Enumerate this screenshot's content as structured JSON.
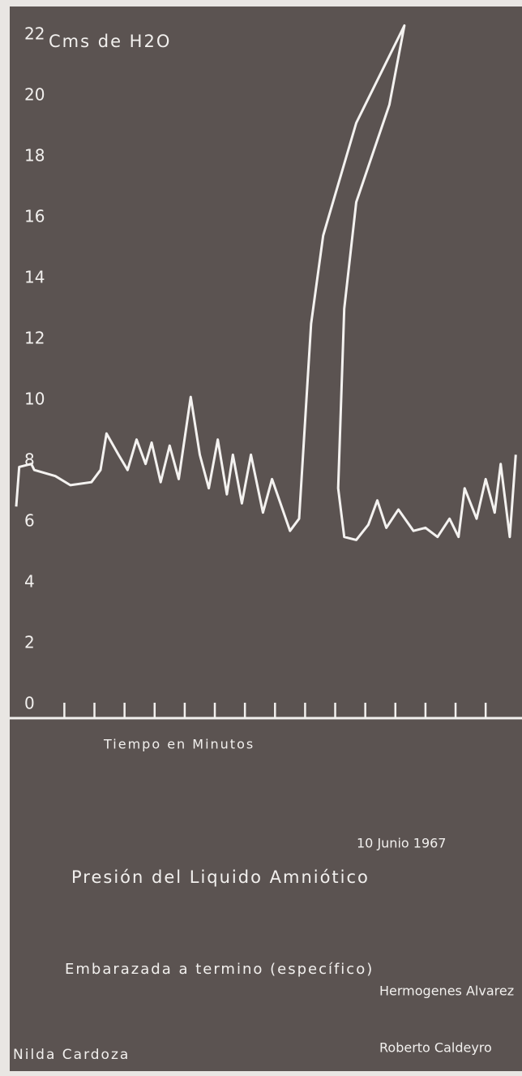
{
  "chart_data": {
    "type": "line",
    "y_label": "Cms de H2O",
    "x_label": "Tiempo en Minutos",
    "date": "10 Junio 1967",
    "title": "Presión del Liquido Amniótico",
    "subtitle": "Embarazada a termino (específico)",
    "authors": [
      "Hermogenes Alvarez",
      "Roberto Caldeyro"
    ],
    "patient": "Nilda Cardoza",
    "xlim": [
      -1.6,
      15.1
    ],
    "xticks": [
      0,
      1,
      2,
      3,
      4,
      5,
      6,
      7,
      8,
      9,
      10,
      11,
      12,
      13,
      14
    ],
    "ylim": [
      0,
      22.5
    ],
    "yticks": [
      0,
      2,
      4,
      6,
      8,
      10,
      12,
      14,
      16,
      18,
      20,
      22
    ],
    "series": [
      {
        "color": "#f4f2f0",
        "x": [
          -1.6,
          -1.5,
          -1.1,
          -1.0,
          -0.3,
          0.2,
          0.9,
          1.2,
          1.4,
          1.8,
          2.1,
          2.4,
          2.7,
          2.9,
          3.2,
          3.5,
          3.8,
          4.2,
          4.5,
          4.8,
          5.1,
          5.4,
          5.6,
          5.9,
          6.2,
          6.6,
          6.9,
          7.5,
          7.8,
          8.2,
          8.6,
          9.7,
          11.3,
          10.8,
          9.7,
          9.3,
          9.1,
          9.3,
          9.7,
          10.1,
          10.4,
          10.7,
          11.1,
          11.6,
          12.0,
          12.4,
          12.8,
          13.1,
          13.3,
          13.7,
          14.0,
          14.3,
          14.5,
          14.8,
          15.0
        ],
        "values": [
          6.5,
          7.8,
          7.9,
          7.7,
          7.5,
          7.2,
          7.3,
          7.7,
          8.9,
          8.2,
          7.7,
          8.7,
          7.9,
          8.6,
          7.3,
          8.5,
          7.4,
          10.1,
          8.2,
          7.1,
          8.7,
          6.9,
          8.2,
          6.6,
          8.2,
          6.3,
          7.4,
          5.7,
          6.1,
          12.5,
          15.4,
          19.1,
          22.3,
          19.7,
          16.5,
          13.0,
          7.1,
          5.5,
          5.4,
          5.9,
          6.7,
          5.8,
          6.4,
          5.7,
          5.8,
          5.5,
          6.1,
          5.5,
          7.1,
          6.1,
          7.4,
          6.3,
          7.9,
          5.5,
          8.2
        ]
      }
    ]
  }
}
